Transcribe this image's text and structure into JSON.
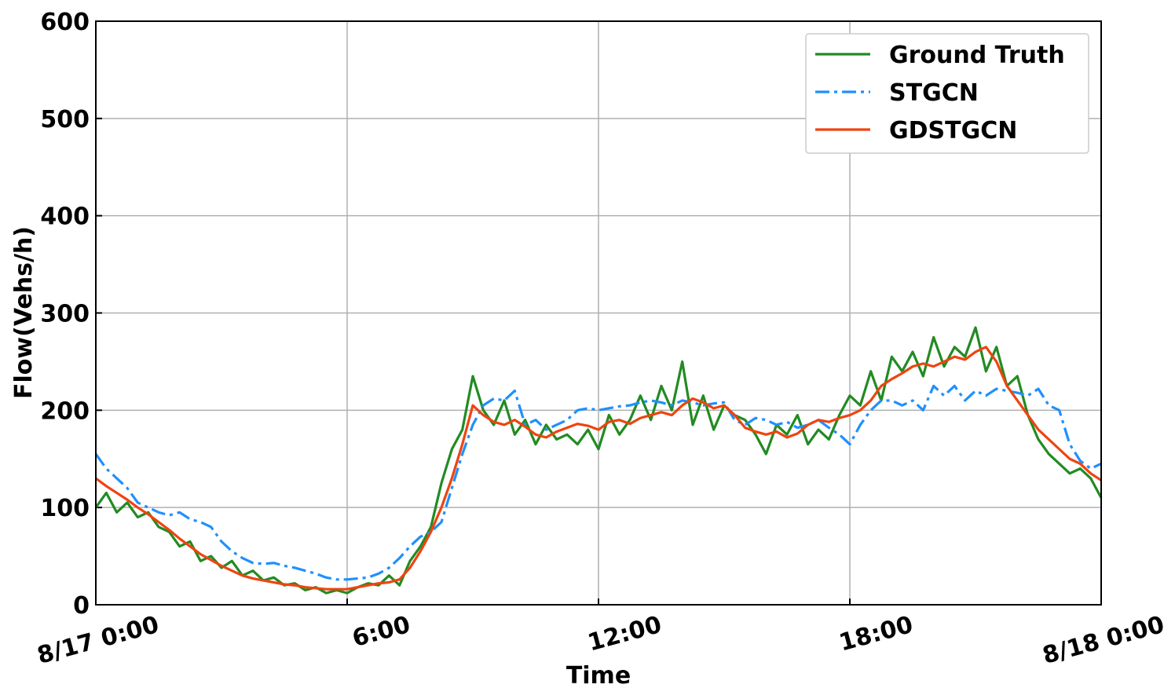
{
  "chart_data": {
    "type": "line",
    "x_label": "Time",
    "y_label": "Flow(Vehs/h)",
    "x": [
      0,
      0.25,
      0.5,
      0.75,
      1,
      1.25,
      1.5,
      1.75,
      2,
      2.25,
      2.5,
      2.75,
      3,
      3.25,
      3.5,
      3.75,
      4,
      4.25,
      4.5,
      4.75,
      5,
      5.25,
      5.5,
      5.75,
      6,
      6.25,
      6.5,
      6.75,
      7,
      7.25,
      7.5,
      7.75,
      8,
      8.25,
      8.5,
      8.75,
      9,
      9.25,
      9.5,
      9.75,
      10,
      10.25,
      10.5,
      10.75,
      11,
      11.25,
      11.5,
      11.75,
      12,
      12.25,
      12.5,
      12.75,
      13,
      13.25,
      13.5,
      13.75,
      14,
      14.25,
      14.5,
      14.75,
      15,
      15.25,
      15.5,
      15.75,
      16,
      16.25,
      16.5,
      16.75,
      17,
      17.25,
      17.5,
      17.75,
      18,
      18.25,
      18.5,
      18.75,
      19,
      19.25,
      19.5,
      19.75,
      20,
      20.25,
      20.5,
      20.75,
      21,
      21.25,
      21.5,
      21.75,
      22,
      22.25,
      22.5,
      22.75,
      23,
      23.25,
      23.5,
      23.75,
      24
    ],
    "series": [
      {
        "name": "Ground Truth",
        "color": "#228b22",
        "style": "solid",
        "values": [
          100,
          115,
          95,
          105,
          90,
          95,
          80,
          75,
          60,
          65,
          45,
          50,
          38,
          45,
          30,
          35,
          25,
          28,
          20,
          22,
          15,
          18,
          12,
          15,
          12,
          18,
          22,
          20,
          30,
          20,
          45,
          60,
          80,
          125,
          160,
          180,
          235,
          200,
          185,
          210,
          175,
          190,
          165,
          185,
          170,
          175,
          165,
          180,
          160,
          195,
          175,
          190,
          215,
          190,
          225,
          200,
          250,
          185,
          215,
          180,
          205,
          195,
          190,
          175,
          155,
          185,
          175,
          195,
          165,
          180,
          170,
          195,
          215,
          205,
          240,
          210,
          255,
          240,
          260,
          235,
          275,
          245,
          265,
          255,
          285,
          240,
          265,
          225,
          235,
          195,
          170,
          155,
          145,
          135,
          140,
          130,
          110
        ]
      },
      {
        "name": "STGCN",
        "color": "#1e90ff",
        "style": "dashdot",
        "values": [
          155,
          140,
          130,
          120,
          105,
          100,
          95,
          92,
          95,
          88,
          85,
          80,
          65,
          55,
          48,
          43,
          42,
          43,
          40,
          38,
          35,
          32,
          28,
          26,
          26,
          27,
          28,
          32,
          38,
          48,
          60,
          70,
          75,
          85,
          120,
          155,
          185,
          205,
          212,
          210,
          220,
          185,
          190,
          180,
          185,
          190,
          200,
          202,
          200,
          202,
          204,
          205,
          208,
          210,
          208,
          205,
          210,
          208,
          205,
          207,
          208,
          190,
          185,
          192,
          190,
          185,
          188,
          182,
          185,
          190,
          182,
          175,
          165,
          185,
          200,
          210,
          210,
          205,
          210,
          200,
          225,
          215,
          225,
          210,
          220,
          215,
          222,
          220,
          218,
          215,
          222,
          205,
          200,
          165,
          148,
          140,
          145
        ]
      },
      {
        "name": "GDSTGCN",
        "color": "#ee4411",
        "style": "solid",
        "values": [
          130,
          122,
          115,
          108,
          100,
          93,
          85,
          77,
          68,
          60,
          52,
          46,
          40,
          35,
          30,
          27,
          25,
          23,
          21,
          20,
          18,
          17,
          16,
          16,
          16,
          18,
          20,
          22,
          23,
          26,
          38,
          55,
          75,
          100,
          130,
          165,
          205,
          195,
          188,
          185,
          190,
          183,
          175,
          172,
          178,
          182,
          186,
          184,
          180,
          188,
          190,
          186,
          192,
          195,
          198,
          195,
          205,
          212,
          208,
          202,
          205,
          195,
          182,
          178,
          175,
          178,
          172,
          176,
          185,
          190,
          188,
          192,
          195,
          200,
          210,
          225,
          232,
          238,
          245,
          248,
          245,
          250,
          255,
          252,
          260,
          265,
          250,
          225,
          210,
          195,
          180,
          170,
          160,
          150,
          145,
          135,
          128
        ]
      }
    ],
    "xlim": [
      0,
      24
    ],
    "xticks": [
      {
        "value": 0,
        "label": "8/17 0:00"
      },
      {
        "value": 6,
        "label": "6:00"
      },
      {
        "value": 12,
        "label": "12:00"
      },
      {
        "value": 18,
        "label": "18:00"
      },
      {
        "value": 24,
        "label": "8/18 0:00"
      }
    ],
    "ylim": [
      0,
      600
    ],
    "yticks": [
      0,
      100,
      200,
      300,
      400,
      500,
      600
    ],
    "grid": true,
    "legend": "upper right"
  }
}
